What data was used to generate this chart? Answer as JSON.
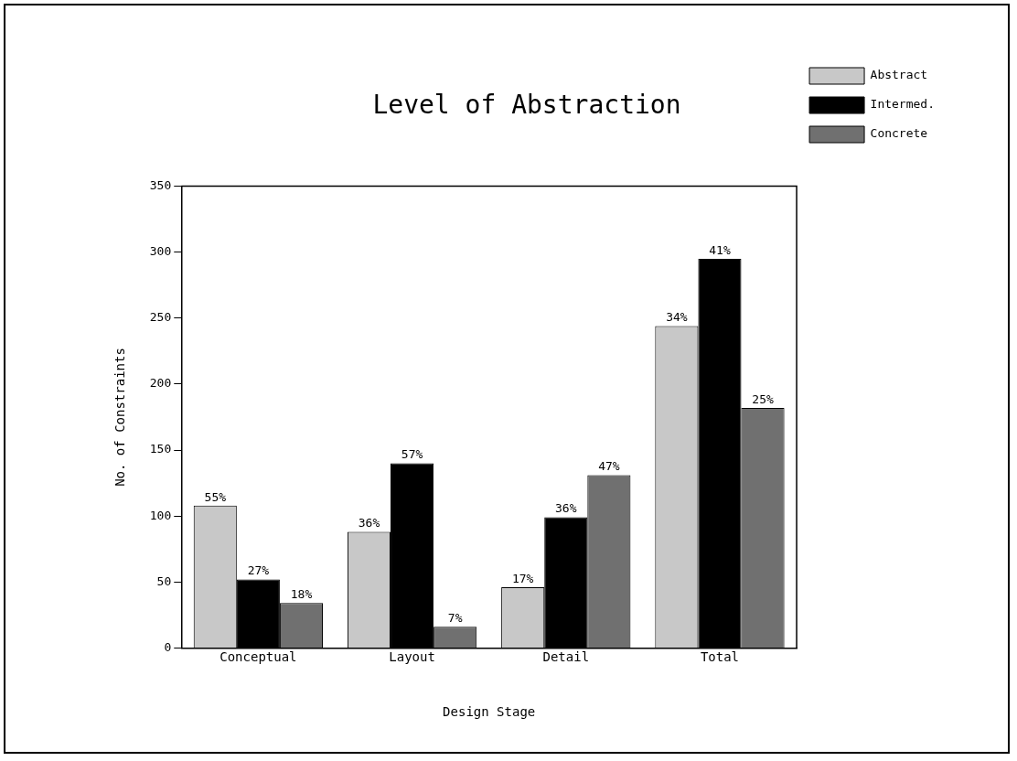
{
  "chart_data": {
    "type": "bar",
    "title": "Level of Abstraction",
    "xlabel": "Design Stage",
    "ylabel": "No. of Constraints",
    "categories": [
      "Conceptual",
      "Layout",
      "Detail",
      "Total"
    ],
    "series": [
      {
        "name": "Abstract",
        "color": "#c8c8c8",
        "values": [
          108,
          88,
          46,
          244
        ]
      },
      {
        "name": "Intermed.",
        "color": "#000000",
        "values": [
          52,
          140,
          99,
          295
        ]
      },
      {
        "name": "Concrete",
        "color": "#707070",
        "values": [
          34,
          16,
          131,
          182
        ]
      }
    ],
    "annotations": [
      "55%",
      "36%",
      "17%",
      "34%",
      "27%",
      "57%",
      "36%",
      "41%",
      "18%",
      "7%",
      "47%",
      "25%"
    ],
    "ylim": [
      0,
      350
    ],
    "yticks": [
      0,
      50,
      100,
      150,
      200,
      250,
      300,
      350
    ],
    "grid": false,
    "legend": "top right"
  }
}
